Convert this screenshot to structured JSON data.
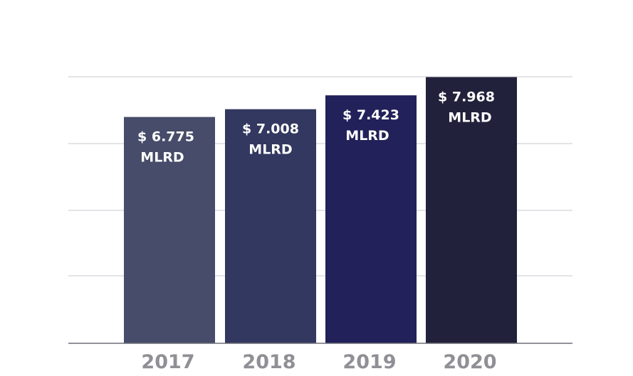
{
  "chart_data": {
    "type": "bar",
    "categories": [
      "2017",
      "2018",
      "2019",
      "2020"
    ],
    "values": [
      6.775,
      7.008,
      7.423,
      7.968
    ],
    "data_labels": [
      [
        "$ 6.775",
        "MLRD"
      ],
      [
        "$ 7.008",
        "MLRD"
      ],
      [
        "$ 7.423",
        "MLRD"
      ],
      [
        "$ 7.968",
        "MLRD"
      ]
    ],
    "bar_colors": [
      "#464c69",
      "#32385f",
      "#22215a",
      "#22213b"
    ],
    "title": "",
    "xlabel": "",
    "ylabel": "",
    "ylim": [
      0,
      8
    ],
    "grid": true,
    "legend": "none"
  }
}
